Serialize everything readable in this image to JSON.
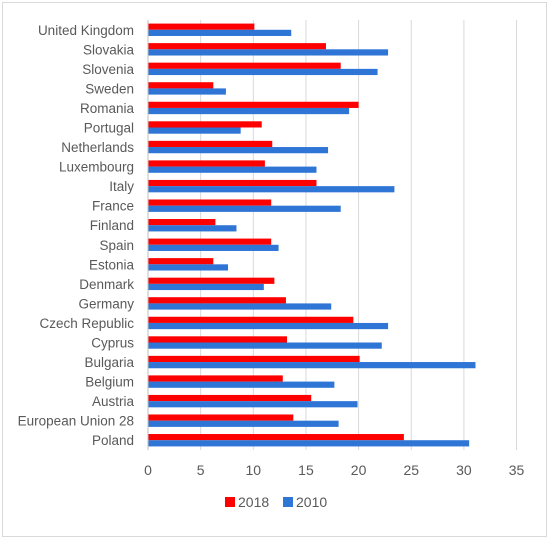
{
  "chart_data": {
    "type": "bar",
    "orientation": "horizontal",
    "categories": [
      "United Kingdom",
      "Slovakia",
      "Slovenia",
      "Sweden",
      "Romania",
      "Portugal",
      "Netherlands",
      "Luxembourg",
      "Italy",
      "France",
      "Finland",
      "Spain",
      "Estonia",
      "Denmark",
      "Germany",
      "Czech Republic",
      "Cyprus",
      "Bulgaria",
      "Belgium",
      "Austria",
      "European Union 28",
      "Poland"
    ],
    "series": [
      {
        "name": "2018",
        "color": "#ff0000",
        "values": [
          10.1,
          16.9,
          18.3,
          6.2,
          20.0,
          10.8,
          11.8,
          11.1,
          16.0,
          11.7,
          6.4,
          11.7,
          6.2,
          12.0,
          13.1,
          19.5,
          13.2,
          20.1,
          12.8,
          15.5,
          13.8,
          24.3
        ]
      },
      {
        "name": "2010",
        "color": "#2e75d6",
        "values": [
          13.6,
          22.8,
          21.8,
          7.4,
          19.1,
          8.8,
          17.1,
          16.0,
          23.4,
          18.3,
          8.4,
          12.4,
          7.6,
          11.0,
          17.4,
          22.8,
          22.2,
          31.1,
          17.7,
          19.9,
          18.1,
          30.5
        ]
      }
    ],
    "x_ticks": [
      "0",
      "5",
      "10",
      "15",
      "20",
      "25",
      "30",
      "35"
    ],
    "xlim": [
      0,
      35
    ],
    "grid": "vertical",
    "legend_position": "bottom"
  }
}
